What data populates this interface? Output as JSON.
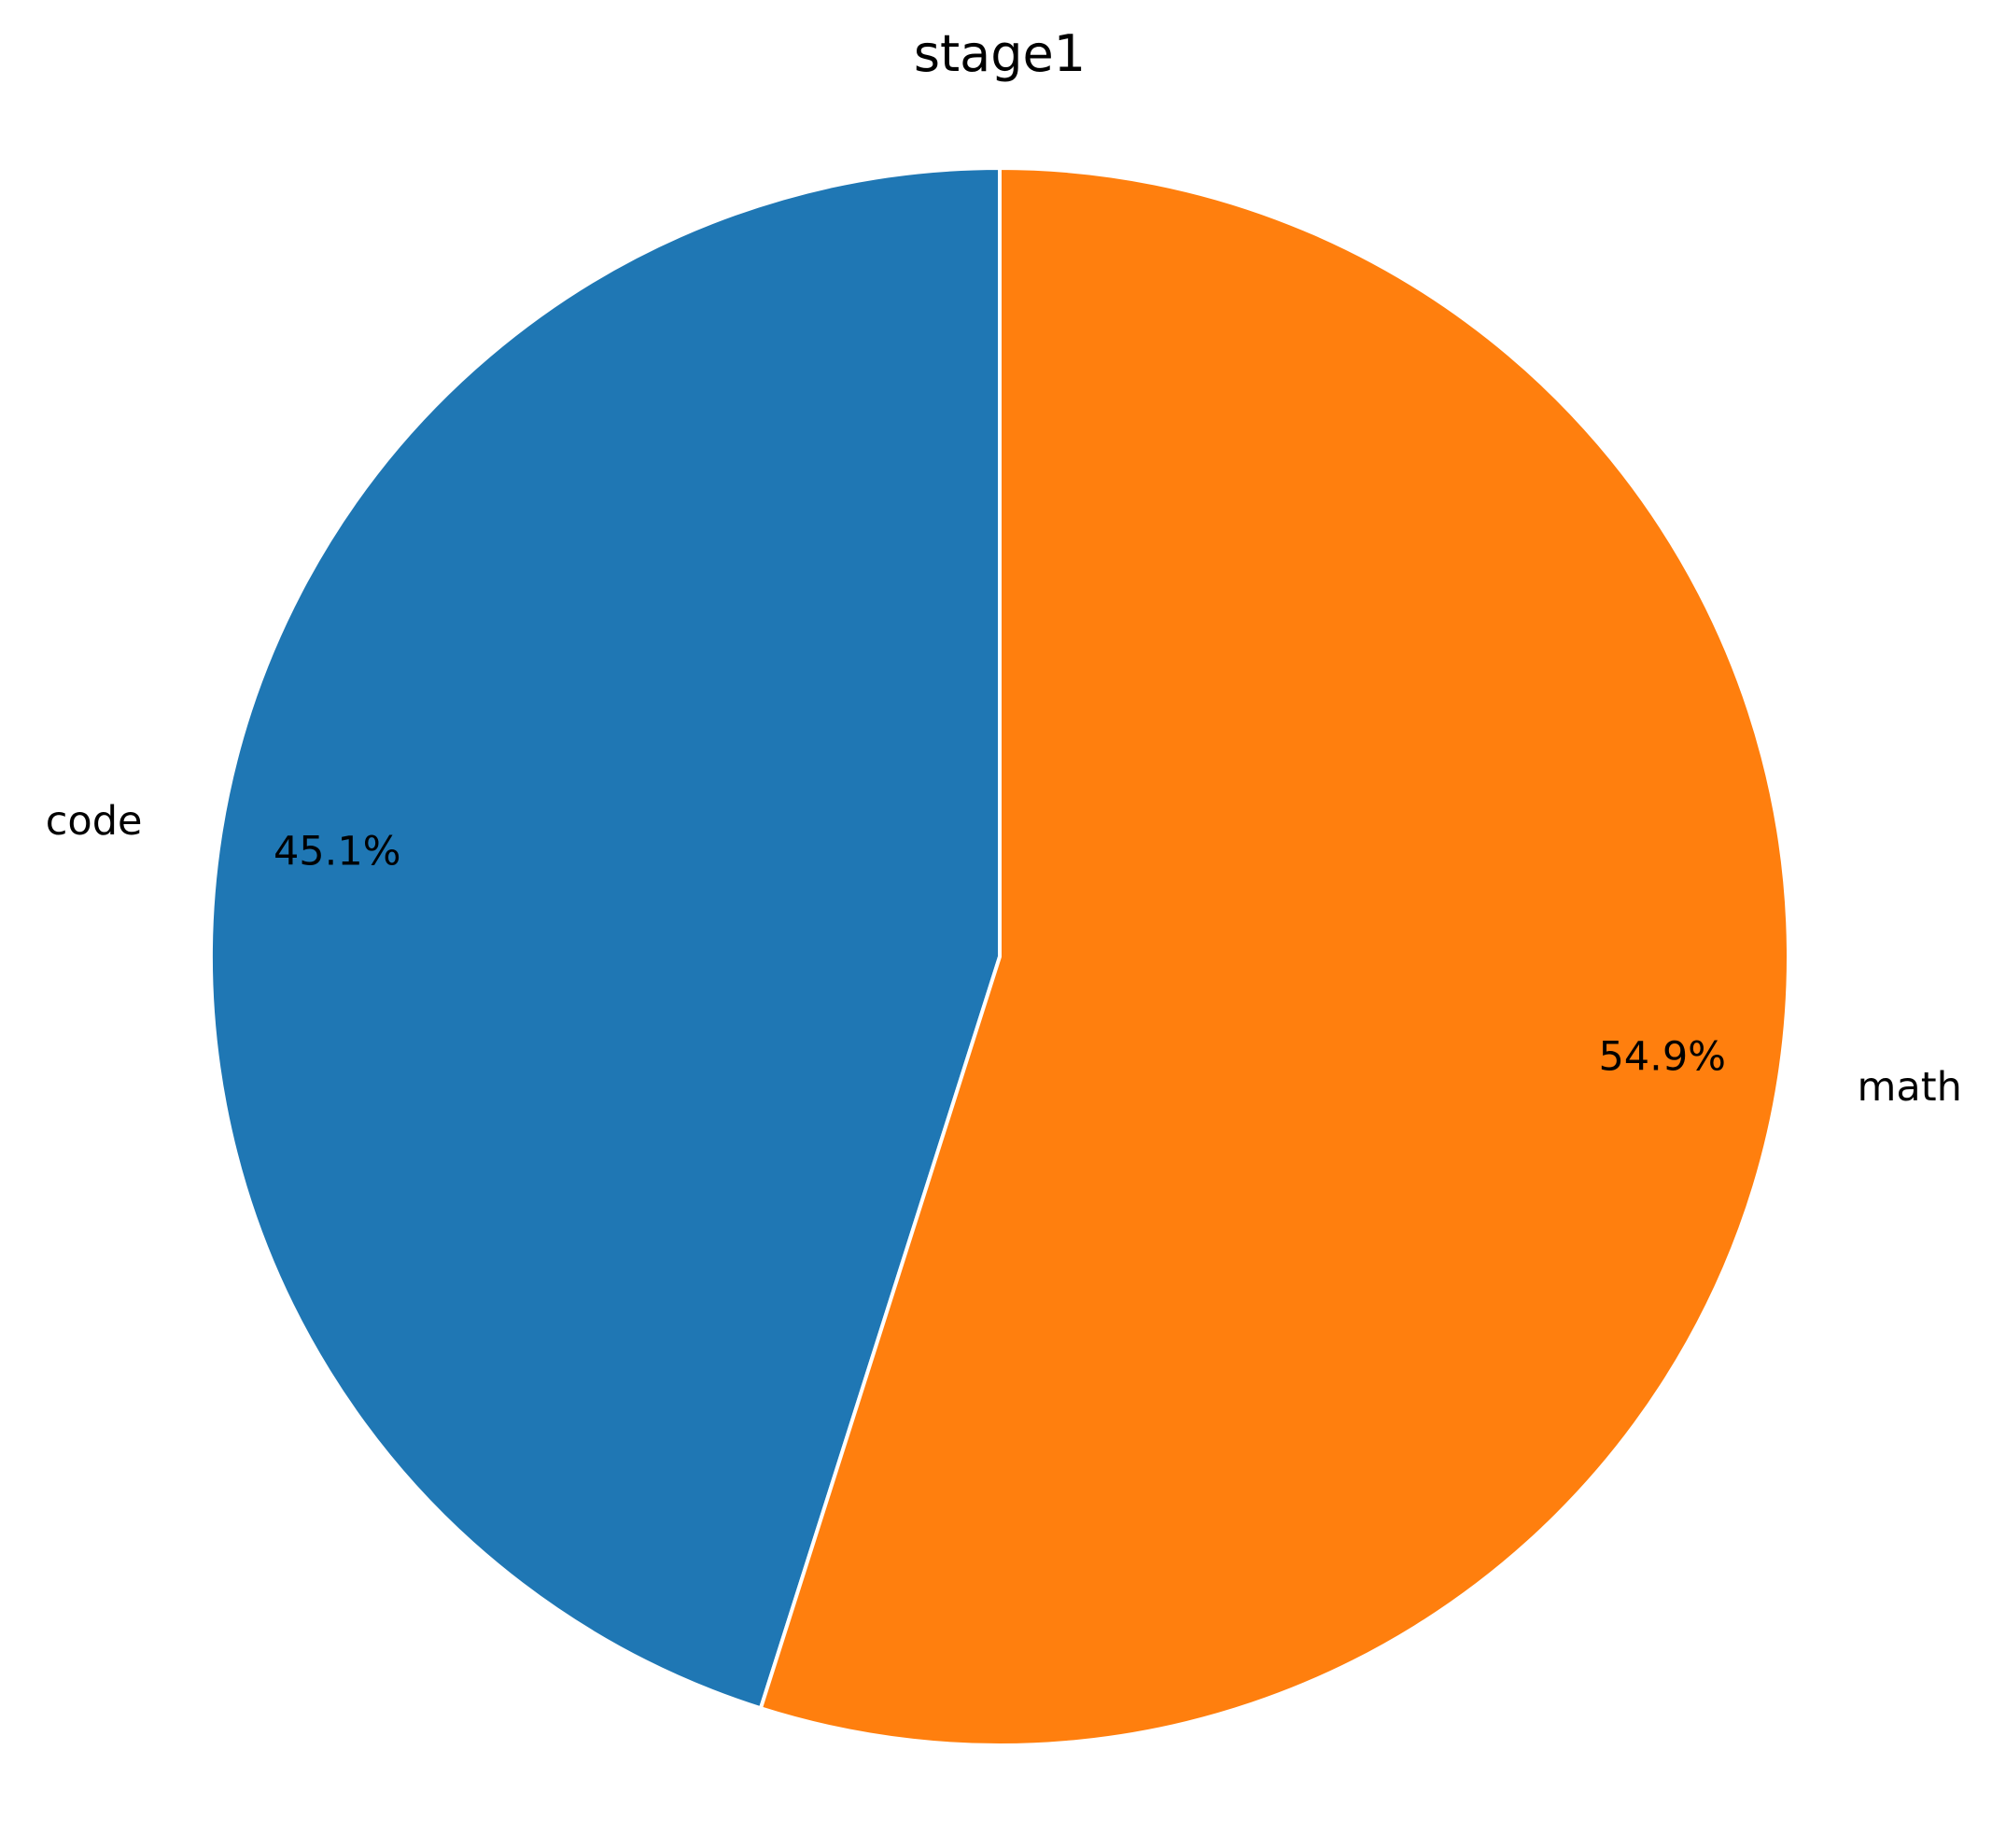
{
  "chart_data": {
    "type": "pie",
    "title": "stage1",
    "start_angle": "top",
    "direction": "counterclockwise",
    "slices": [
      {
        "label": "code",
        "value": 45.1,
        "pct_label": "45.1%",
        "color": "#1f77b4"
      },
      {
        "label": "math",
        "value": 54.9,
        "pct_label": "54.9%",
        "color": "#ff7f0e"
      }
    ],
    "edge_color": "#ffffff"
  }
}
